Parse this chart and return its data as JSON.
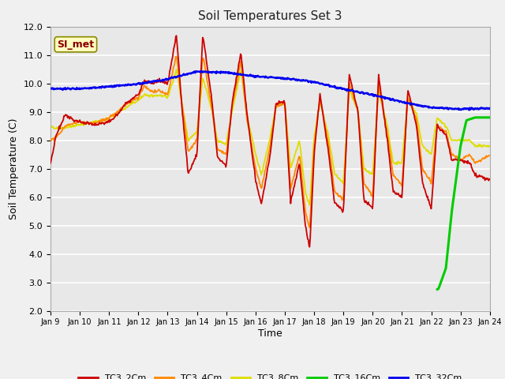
{
  "title": "Soil Temperatures Set 3",
  "xlabel": "Time",
  "ylabel": "Soil Temperature (C)",
  "ylim": [
    2.0,
    12.0
  ],
  "yticks": [
    2.0,
    3.0,
    4.0,
    5.0,
    6.0,
    7.0,
    8.0,
    9.0,
    10.0,
    11.0,
    12.0
  ],
  "figure_bg": "#f0f0f0",
  "plot_bg": "#e8e8e8",
  "grid_color": "#ffffff",
  "annotation_text": "SI_met",
  "annotation_bg": "#ffffc0",
  "annotation_border": "#888800",
  "series_colors": {
    "TC3_2Cm": "#cc0000",
    "TC3_4Cm": "#ff8800",
    "TC3_8Cm": "#dddd00",
    "TC3_16Cm": "#00cc00",
    "TC3_32Cm": "#0000ee"
  },
  "xtick_labels": [
    "Jan 9",
    "Jan 10",
    "Jan 11",
    "Jan 12",
    "Jan 13",
    "Jan 14",
    "Jan 15",
    "Jan 16",
    "Jan 17",
    "Jan 18",
    "Jan 19",
    "Jan 20",
    "Jan 21",
    "Jan 22",
    "Jan 23",
    "Jan 24"
  ]
}
